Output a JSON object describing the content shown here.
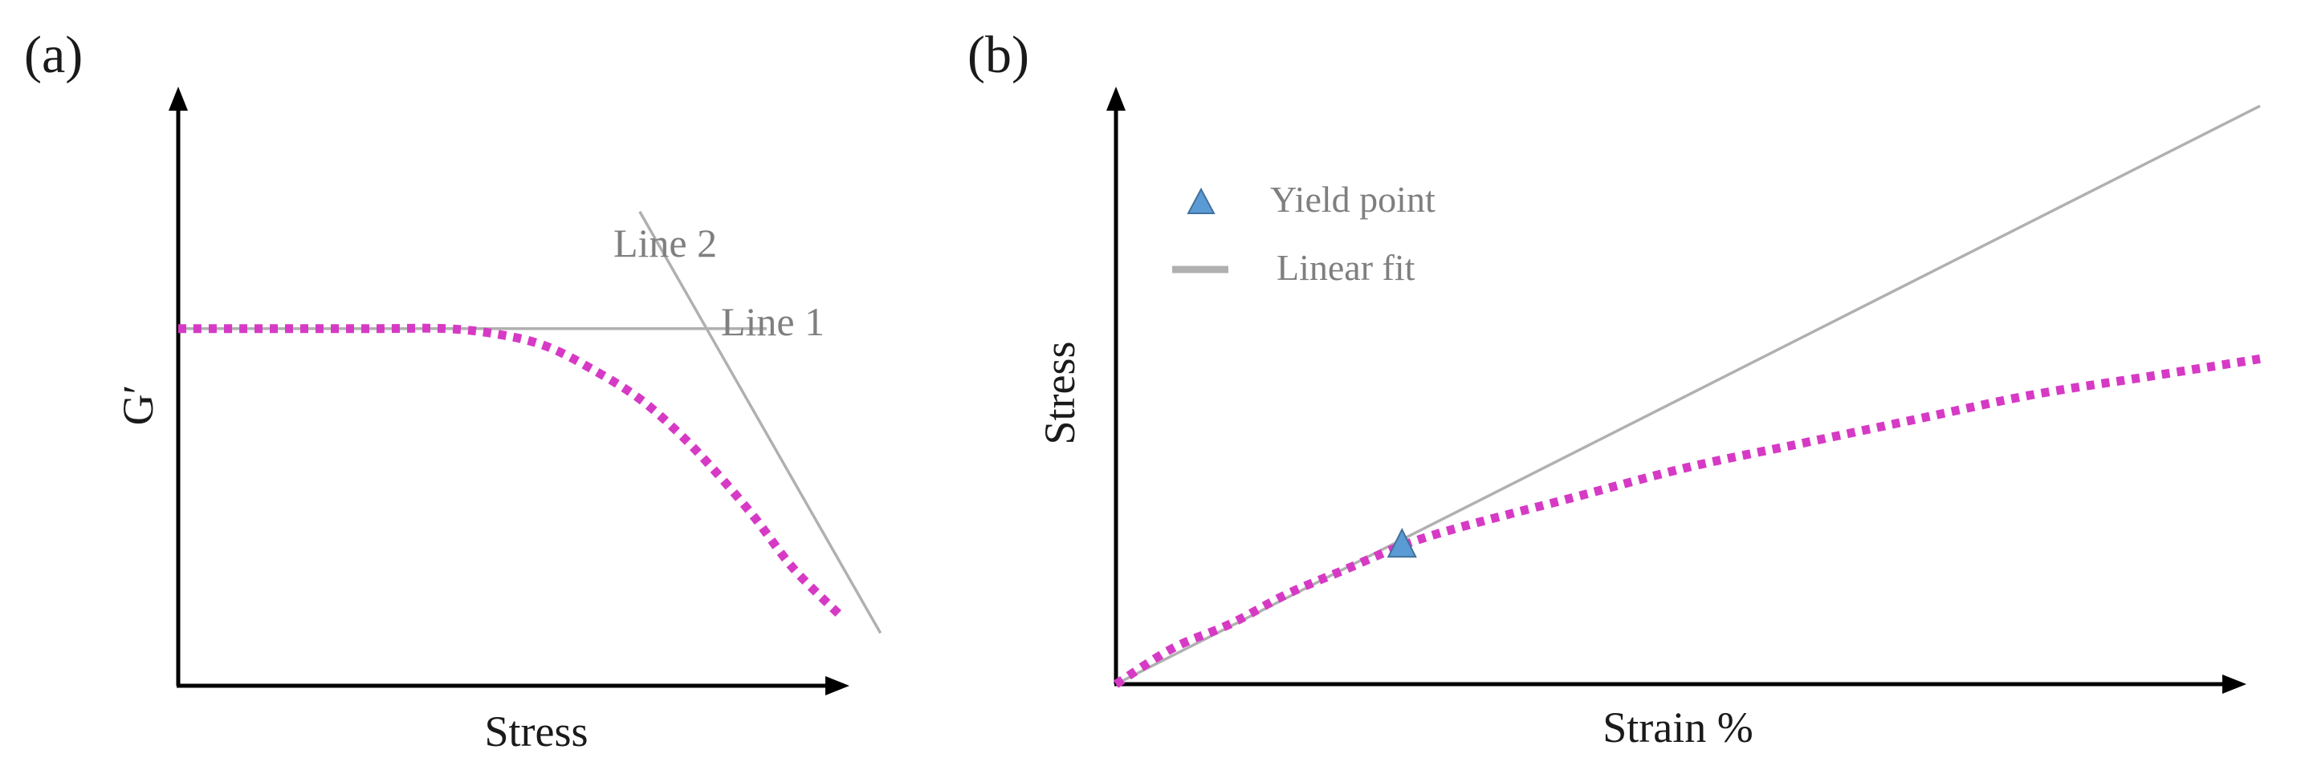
{
  "chart_data": [
    {
      "panel": "(a)",
      "type": "line",
      "xlabel": "Stress",
      "ylabel": "G′",
      "xlim": [
        0,
        1
      ],
      "ylim": [
        0,
        1
      ],
      "grid": false,
      "series": [
        {
          "style": "dotted",
          "color": "#d63ac5",
          "x": [
            0.0,
            0.1,
            0.2,
            0.3,
            0.4,
            0.48,
            0.55,
            0.62,
            0.69,
            0.75,
            0.8,
            0.86,
            0.92,
            0.99
          ],
          "y": [
            0.61,
            0.61,
            0.61,
            0.61,
            0.61,
            0.6,
            0.58,
            0.54,
            0.49,
            0.43,
            0.37,
            0.29,
            0.2,
            0.12
          ]
        },
        {
          "label": "Line 1",
          "style": "solid",
          "color": "#b0b0b0",
          "x": [
            0.0,
            0.88
          ],
          "y": [
            0.61,
            0.61
          ]
        },
        {
          "label": "Line 2",
          "style": "solid",
          "color": "#b0b0b0",
          "x": [
            0.69,
            1.05
          ],
          "y": [
            0.81,
            0.09
          ]
        }
      ],
      "annotations": [
        "Line 1",
        "Line 2"
      ]
    },
    {
      "panel": "(b)",
      "type": "line",
      "xlabel": "Strain %",
      "ylabel": "Stress",
      "xlim": [
        0,
        1
      ],
      "ylim": [
        0,
        1
      ],
      "grid": false,
      "legend": {
        "position": "top-left",
        "entries": [
          {
            "label": "Yield point",
            "marker": "triangle",
            "color": "#5b9bd5"
          },
          {
            "label": "Linear fit",
            "marker": "line",
            "color": "#b0b0b0"
          }
        ]
      },
      "series": [
        {
          "style": "dotted",
          "color": "#d63ac5",
          "x": [
            0.0,
            0.05,
            0.1,
            0.15,
            0.2,
            0.25,
            0.3,
            0.4,
            0.5,
            0.6,
            0.7,
            0.8,
            0.9,
            1.0
          ],
          "y": [
            0.0,
            0.06,
            0.1,
            0.15,
            0.19,
            0.23,
            0.26,
            0.31,
            0.36,
            0.4,
            0.44,
            0.48,
            0.51,
            0.54
          ]
        },
        {
          "label": "Linear fit",
          "style": "solid",
          "color": "#b0b0b0",
          "x": [
            0.0,
            1.0
          ],
          "y": [
            0.0,
            0.96
          ]
        }
      ],
      "points": [
        {
          "label": "Yield point",
          "x": 0.25,
          "y": 0.23
        }
      ]
    }
  ]
}
